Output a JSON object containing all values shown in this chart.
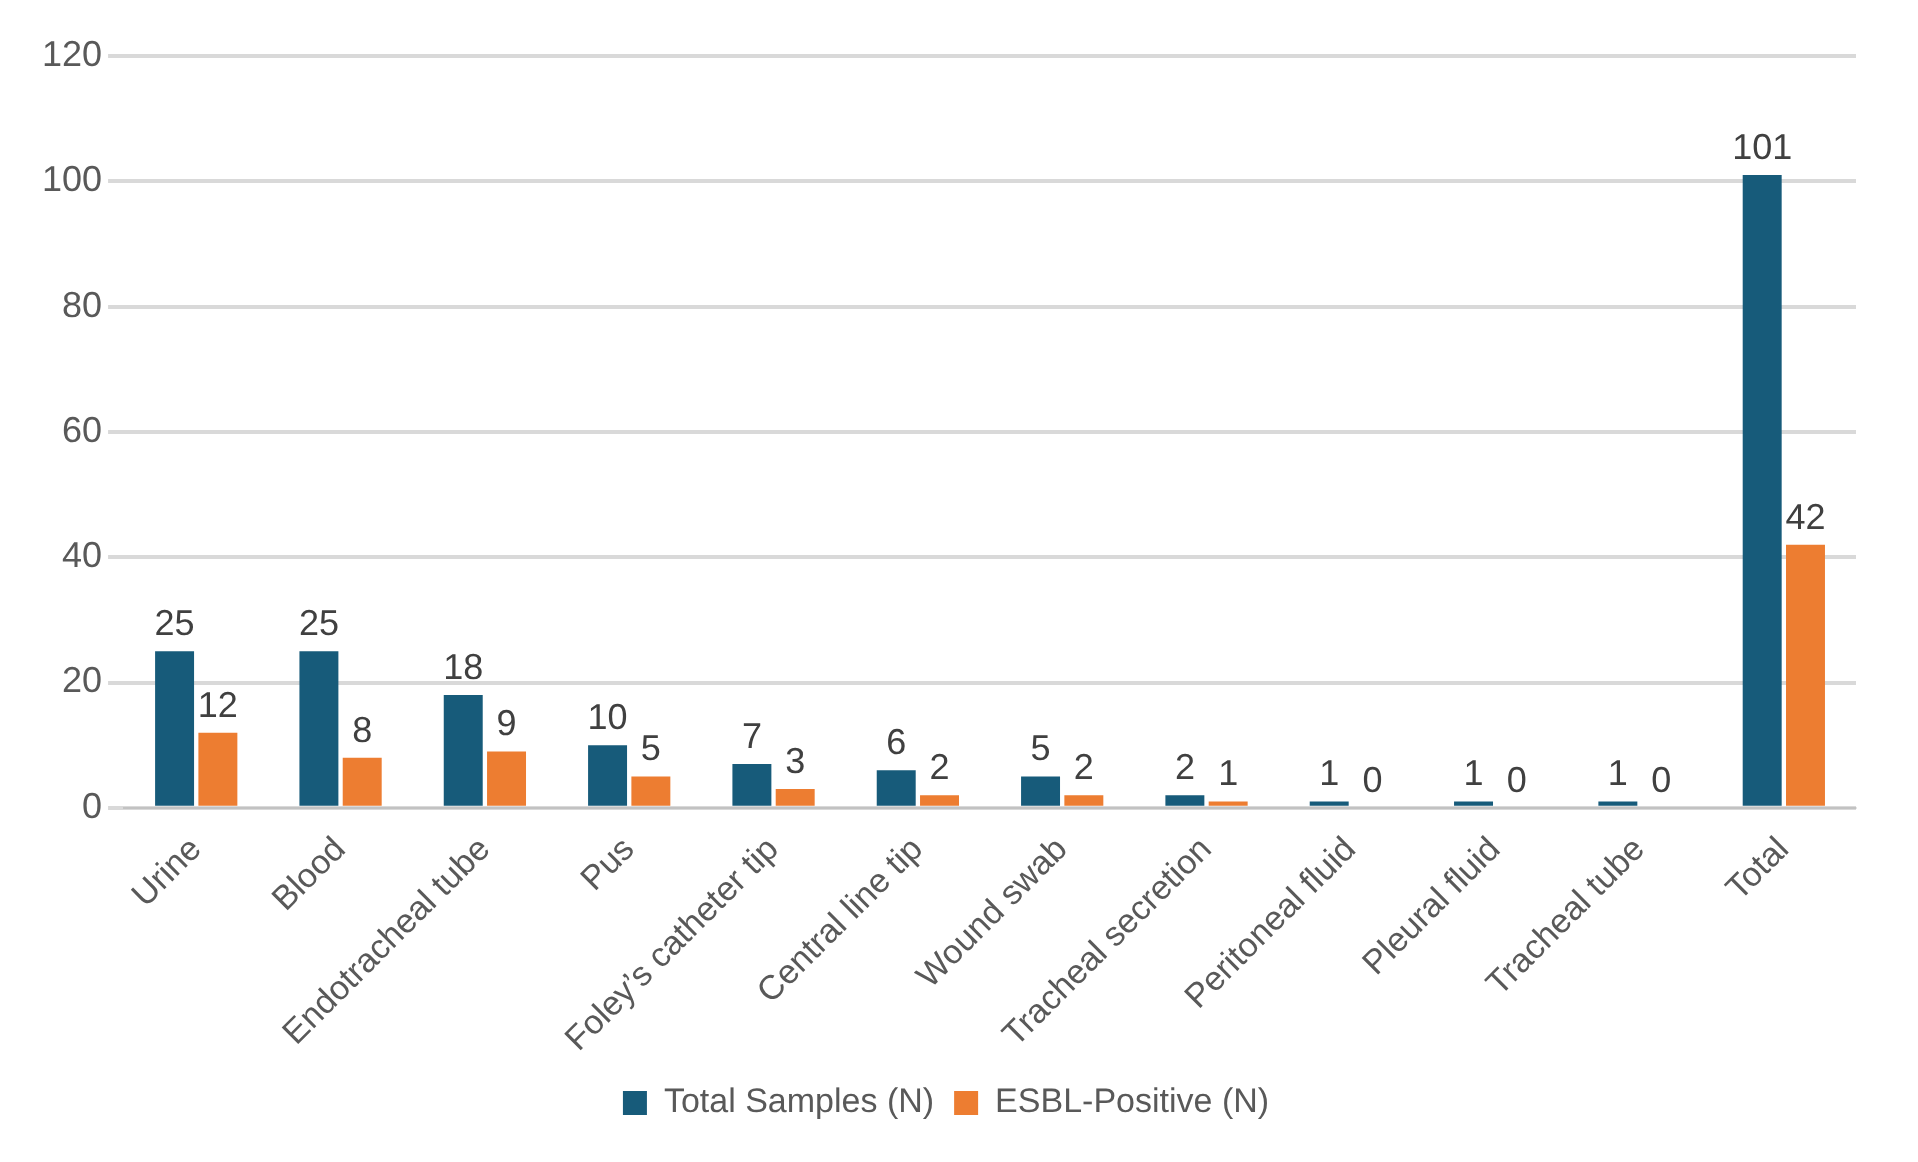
{
  "chart_data": {
    "type": "bar",
    "categories": [
      "Urine",
      "Blood",
      "Endotracheal tube",
      "Pus",
      "Foley’s catheter tip",
      "Central line tip",
      "Wound swab",
      "Tracheal secretion",
      "Peritoneal fluid",
      "Pleural fluid",
      "Tracheal tube",
      "Total"
    ],
    "series": [
      {
        "name": "Total Samples (N)",
        "color": "#175b7a",
        "values": [
          25,
          25,
          18,
          10,
          7,
          6,
          5,
          2,
          1,
          1,
          1,
          101
        ]
      },
      {
        "name": "ESBL-Positive (N)",
        "color": "#ed7d31",
        "values": [
          12,
          8,
          9,
          5,
          3,
          2,
          2,
          1,
          0,
          0,
          0,
          42
        ]
      }
    ],
    "ylim": [
      0,
      120
    ],
    "yticks": [
      0,
      20,
      40,
      60,
      80,
      100,
      120
    ],
    "grid": "y",
    "legend": "bottom",
    "data_labels": true
  }
}
